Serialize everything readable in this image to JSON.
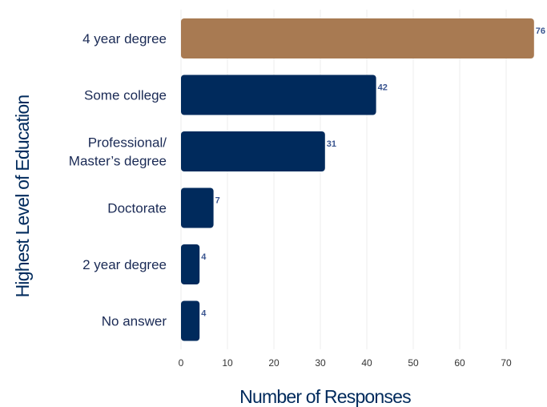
{
  "chart_data": {
    "type": "bar",
    "orientation": "horizontal",
    "categories": [
      [
        "4 year degree"
      ],
      [
        "Some college"
      ],
      [
        "Professional/",
        "Master’s degree"
      ],
      [
        "Doctorate"
      ],
      [
        "2 year degree"
      ],
      [
        "No answer"
      ]
    ],
    "values": [
      76,
      42,
      31,
      7,
      4,
      4
    ],
    "value_labels": [
      "76",
      "42",
      "31",
      "7",
      "4",
      "4"
    ],
    "highlight_index": 0,
    "xlabel": "Number of Responses",
    "ylabel": "Highest Level of Education",
    "xlim": [
      0,
      78
    ],
    "x_ticks": [
      0,
      10,
      20,
      30,
      40,
      50,
      60,
      70
    ],
    "grid": true,
    "colors": {
      "bar": "#002a5c",
      "highlight": "#a87a52",
      "value_label": "#3a5590"
    }
  }
}
